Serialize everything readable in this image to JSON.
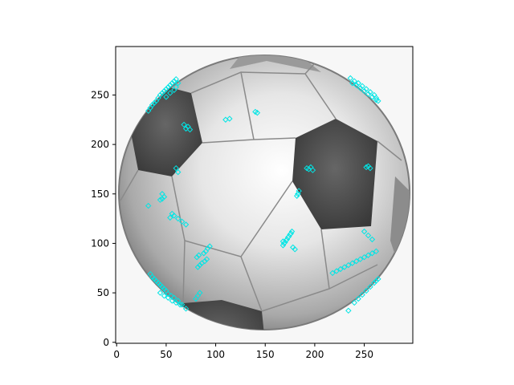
{
  "chart_data": {
    "type": "scatter",
    "title": "",
    "xlabel": "",
    "ylabel": "",
    "xlim": [
      -1,
      299
    ],
    "ylim": [
      299,
      -1
    ],
    "y_inverted": true,
    "grid": false,
    "legend": "none",
    "background_image": "soccer-ball",
    "x_ticks": [
      0,
      50,
      100,
      150,
      200,
      250
    ],
    "y_ticks": [
      0,
      50,
      100,
      150,
      200,
      250
    ],
    "x_tick_labels": [
      "0",
      "50",
      "100",
      "150",
      "200",
      "250"
    ],
    "y_tick_labels": [
      "0",
      "50",
      "100",
      "150",
      "200",
      "250"
    ],
    "marker": "diamond-open",
    "marker_color": "#00e5e5",
    "series": [
      {
        "x": [
          70,
          66,
          62,
          58,
          55,
          52,
          50,
          48,
          46,
          44,
          42,
          40,
          38,
          36,
          34,
          44,
          48,
          52,
          56,
          60,
          64,
          80,
          82,
          84,
          81,
          83,
          88,
          90,
          92,
          94,
          91,
          89,
          86,
          84,
          82,
          70,
          66,
          62,
          58,
          56,
          54,
          46,
          48,
          44,
          46,
          32,
          62,
          60,
          168,
          170,
          172,
          174,
          176,
          178,
          180,
          169,
          171,
          173,
          175,
          177,
          168,
          183,
          184,
          182,
          192,
          194,
          196,
          198,
          252,
          254,
          256,
          218,
          222,
          226,
          230,
          234,
          238,
          242,
          246,
          250,
          254,
          258,
          262,
          234,
          240,
          244,
          248,
          252,
          256,
          260,
          262,
          264,
          250,
          254,
          258,
          70,
          72,
          74,
          68,
          110,
          114,
          140,
          142,
          32,
          34,
          36,
          38,
          40,
          42,
          44,
          46,
          48,
          50,
          52,
          54,
          56,
          58,
          60,
          62,
          50,
          54,
          58,
          60,
          236,
          240,
          244,
          248,
          252,
          256,
          260,
          262,
          264,
          238,
          242,
          246,
          250,
          254,
          258,
          262
        ],
        "y": [
          34,
          38,
          42,
          45,
          47,
          49,
          52,
          54,
          56,
          58,
          60,
          62,
          64,
          66,
          69,
          50,
          47,
          45,
          42,
          40,
          38,
          44,
          47,
          50,
          86,
          88,
          90,
          92,
          95,
          97,
          84,
          82,
          80,
          78,
          76,
          119,
          122,
          125,
          128,
          130,
          126,
          145,
          147,
          144,
          150,
          138,
          172,
          176,
          98,
          101,
          104,
          107,
          110,
          96,
          94,
          100,
          103,
          106,
          109,
          112,
          102,
          150,
          153,
          148,
          176,
          175,
          177,
          174,
          177,
          178,
          176,
          70,
          72,
          74,
          76,
          78,
          80,
          82,
          84,
          86,
          88,
          90,
          92,
          32,
          40,
          44,
          48,
          52,
          56,
          60,
          62,
          64,
          112,
          108,
          104,
          216,
          218,
          215,
          220,
          225,
          226,
          233,
          232,
          234,
          237,
          240,
          242,
          244,
          247,
          250,
          252,
          254,
          256,
          258,
          260,
          262,
          264,
          266,
          262,
          248,
          252,
          255,
          258,
          267,
          264,
          262,
          259,
          256,
          253,
          250,
          247,
          244,
          262,
          260,
          257,
          254,
          251,
          248,
          245
        ]
      }
    ]
  }
}
